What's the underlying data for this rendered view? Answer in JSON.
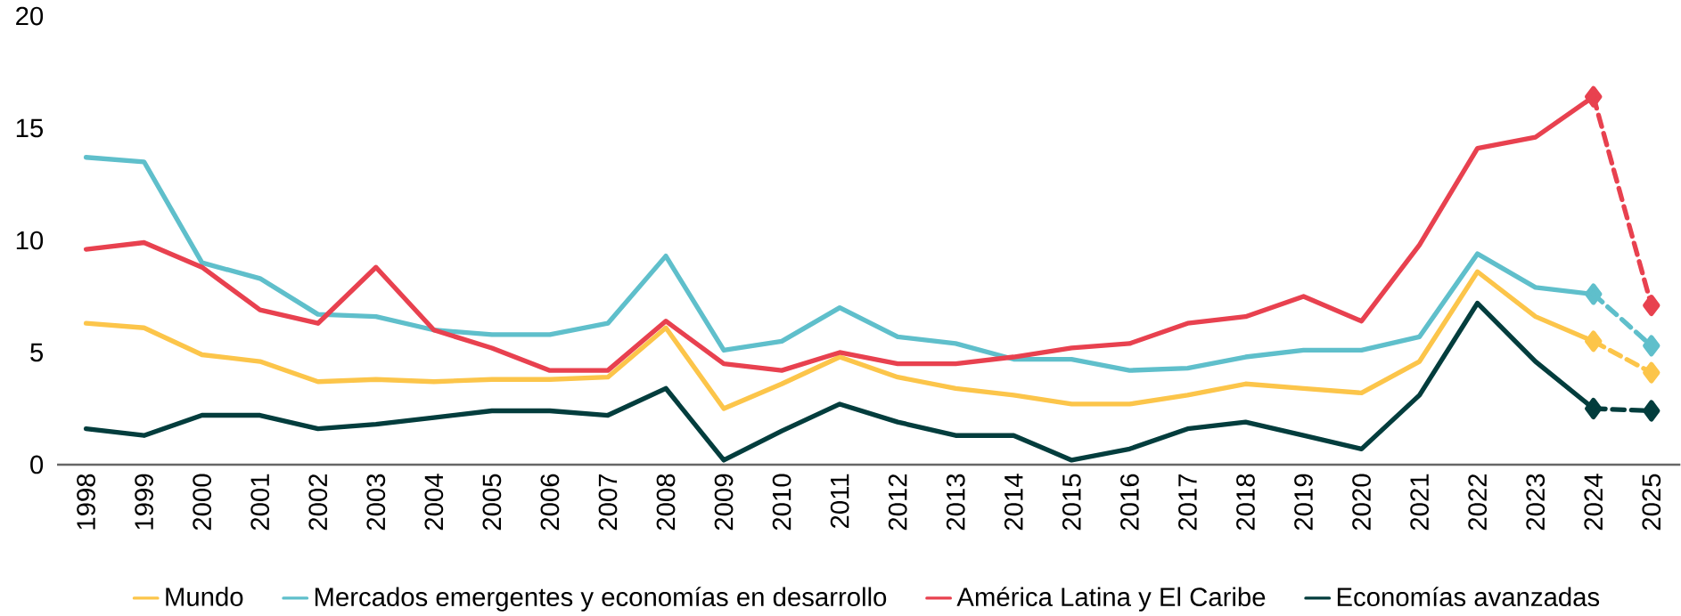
{
  "chart_data": {
    "type": "line",
    "categories": [
      "1998",
      "1999",
      "2000",
      "2001",
      "2002",
      "2003",
      "2004",
      "2005",
      "2006",
      "2007",
      "2008",
      "2009",
      "2010",
      "2011",
      "2012",
      "2013",
      "2014",
      "2015",
      "2016",
      "2017",
      "2018",
      "2019",
      "2020",
      "2021",
      "2022",
      "2023",
      "2024",
      "2025"
    ],
    "series": [
      {
        "name": "Mundo",
        "color": "#fcc54a",
        "values": [
          6.3,
          6.1,
          4.9,
          4.6,
          3.7,
          3.8,
          3.7,
          3.8,
          3.8,
          3.9,
          6.1,
          2.5,
          3.6,
          4.8,
          3.9,
          3.4,
          3.1,
          2.7,
          2.7,
          3.1,
          3.6,
          3.4,
          3.2,
          4.6,
          8.6,
          6.6,
          5.5,
          null
        ]
      },
      {
        "name": "Mercados emergentes y economías en desarrollo",
        "color": "#5fbfcb",
        "values": [
          13.7,
          13.5,
          9.0,
          8.3,
          6.7,
          6.6,
          6.0,
          5.8,
          5.8,
          6.3,
          9.3,
          5.1,
          5.5,
          7.0,
          5.7,
          5.4,
          4.7,
          4.7,
          4.2,
          4.3,
          4.8,
          5.1,
          5.1,
          5.7,
          9.4,
          7.9,
          7.6,
          null
        ]
      },
      {
        "name": "América Latina y El Caribe",
        "color": "#e8414f",
        "values": [
          9.6,
          9.9,
          8.8,
          6.9,
          6.3,
          8.8,
          6.0,
          5.2,
          4.2,
          4.2,
          6.4,
          4.5,
          4.2,
          5.0,
          4.5,
          4.5,
          4.8,
          5.2,
          5.4,
          6.3,
          6.6,
          7.5,
          6.4,
          9.8,
          14.1,
          14.6,
          16.4,
          null
        ]
      },
      {
        "name": "Economías avanzadas",
        "color": "#033d3d",
        "values": [
          1.6,
          1.3,
          2.2,
          2.2,
          1.6,
          1.8,
          2.1,
          2.4,
          2.4,
          2.2,
          3.4,
          0.2,
          1.5,
          2.7,
          1.9,
          1.3,
          1.3,
          0.2,
          0.7,
          1.6,
          1.9,
          1.3,
          0.7,
          3.1,
          7.2,
          4.6,
          2.5,
          null
        ]
      },
      {
        "color": "#fcc54a",
        "line_style": "dashed",
        "marker": "diamond",
        "values": [
          null,
          null,
          null,
          null,
          null,
          null,
          null,
          null,
          null,
          null,
          null,
          null,
          null,
          null,
          null,
          null,
          null,
          null,
          null,
          null,
          null,
          null,
          null,
          null,
          null,
          null,
          5.5,
          4.1
        ]
      },
      {
        "color": "#5fbfcb",
        "line_style": "dashed",
        "marker": "diamond",
        "values": [
          null,
          null,
          null,
          null,
          null,
          null,
          null,
          null,
          null,
          null,
          null,
          null,
          null,
          null,
          null,
          null,
          null,
          null,
          null,
          null,
          null,
          null,
          null,
          null,
          null,
          null,
          7.6,
          5.3
        ]
      },
      {
        "color": "#e8414f",
        "line_style": "dashed",
        "marker": "diamond",
        "values": [
          null,
          null,
          null,
          null,
          null,
          null,
          null,
          null,
          null,
          null,
          null,
          null,
          null,
          null,
          null,
          null,
          null,
          null,
          null,
          null,
          null,
          null,
          null,
          null,
          null,
          null,
          16.4,
          7.1
        ]
      },
      {
        "color": "#033d3d",
        "line_style": "dashed",
        "marker": "diamond",
        "values": [
          null,
          null,
          null,
          null,
          null,
          null,
          null,
          null,
          null,
          null,
          null,
          null,
          null,
          null,
          null,
          null,
          null,
          null,
          null,
          null,
          null,
          null,
          null,
          null,
          null,
          null,
          2.5,
          2.4
        ]
      }
    ],
    "ylim": [
      0,
      20
    ],
    "yticks": [
      0,
      5,
      10,
      15,
      20
    ],
    "legend": "bottom",
    "grid": false
  }
}
